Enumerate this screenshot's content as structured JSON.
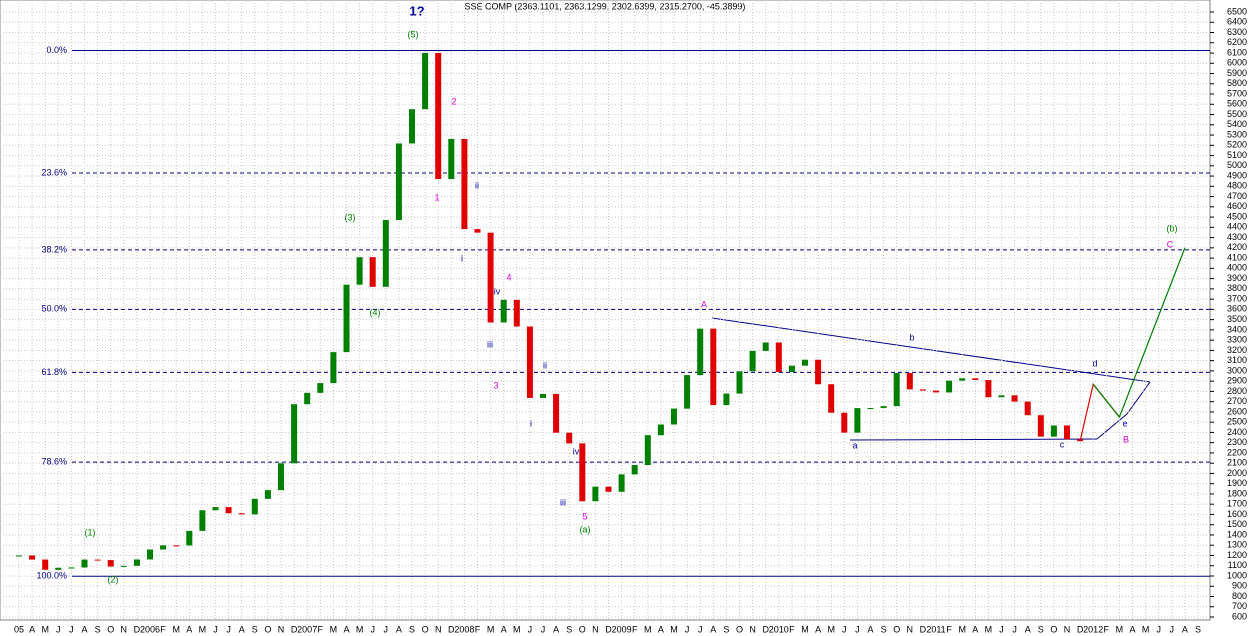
{
  "chart_data": {
    "type": "candle-line",
    "title": "SSE COMP (2363.1101, 2363.1299, 2302.6399, 2315.2700, -45.3899)",
    "categories": [
      "05",
      "A",
      "M",
      "J",
      "J",
      "A",
      "S",
      "O",
      "N",
      "D",
      "2006",
      "F",
      "M",
      "A",
      "M",
      "J",
      "J",
      "A",
      "S",
      "O",
      "N",
      "D",
      "2007",
      "F",
      "M",
      "A",
      "M",
      "J",
      "J",
      "A",
      "S",
      "O",
      "N",
      "D",
      "2008",
      "F",
      "M",
      "A",
      "M",
      "J",
      "J",
      "A",
      "S",
      "O",
      "N",
      "D",
      "2009",
      "F",
      "M",
      "A",
      "M",
      "J",
      "J",
      "A",
      "S",
      "O",
      "N",
      "D",
      "2010",
      "F",
      "M",
      "A",
      "M",
      "J",
      "J",
      "A",
      "S",
      "O",
      "N",
      "D",
      "2011",
      "F",
      "M",
      "A",
      "M",
      "J",
      "J",
      "A",
      "S",
      "O",
      "N",
      "D",
      "2012",
      "F",
      "M",
      "A",
      "M",
      "J",
      "J",
      "A",
      "S"
    ],
    "values": [
      1200,
      1160,
      1060,
      1080,
      1083,
      1160,
      1155,
      1092,
      1099,
      1161,
      1258,
      1299,
      1298,
      1440,
      1641,
      1672,
      1612,
      1601,
      1752,
      1837,
      2099,
      2675,
      2786,
      2881,
      3183,
      3841,
      4109,
      3820,
      4471,
      5218,
      5552,
      6100,
      4871,
      5262,
      4383,
      4348,
      3472,
      3693,
      3433,
      2736,
      2775,
      2397,
      2293,
      1729,
      1871,
      1821,
      1991,
      2082,
      2373,
      2477,
      2632,
      2959,
      3412,
      2667,
      2779,
      2996,
      3195,
      3277,
      2989,
      3051,
      3109,
      2870,
      2592,
      2398,
      2637,
      2638,
      2656,
      2979,
      2820,
      2808,
      2790,
      2905,
      2928,
      2911,
      2743,
      2762,
      2701,
      2568,
      2359,
      2468,
      2333,
      2315,
      null,
      null,
      null,
      null,
      null,
      null,
      null,
      null,
      null
    ],
    "up_color": "#008000",
    "down_color": "#e00000",
    "series": [
      {
        "color": "#e00000",
        "values": [
          null,
          null,
          null,
          null,
          null,
          null,
          null,
          null,
          null,
          null,
          null,
          null,
          null,
          null,
          null,
          null,
          null,
          null,
          null,
          null,
          null,
          null,
          null,
          null,
          null,
          null,
          null,
          null,
          null,
          null,
          null,
          null,
          null,
          null,
          null,
          null,
          null,
          null,
          null,
          null,
          null,
          null,
          null,
          null,
          null,
          null,
          null,
          null,
          null,
          null,
          null,
          null,
          null,
          null,
          null,
          null,
          null,
          null,
          null,
          null,
          null,
          null,
          null,
          null,
          null,
          null,
          null,
          null,
          null,
          null,
          null,
          null,
          null,
          null,
          null,
          null,
          null,
          null,
          null,
          null,
          null,
          2315,
          2870,
          null,
          2550,
          null,
          null,
          null,
          null,
          null,
          null
        ]
      },
      {
        "color": "#008000",
        "values": [
          null,
          null,
          null,
          null,
          null,
          null,
          null,
          null,
          null,
          null,
          null,
          null,
          null,
          null,
          null,
          null,
          null,
          null,
          null,
          null,
          null,
          null,
          null,
          null,
          null,
          null,
          null,
          null,
          null,
          null,
          null,
          null,
          null,
          null,
          null,
          null,
          null,
          null,
          null,
          null,
          null,
          null,
          null,
          null,
          null,
          null,
          null,
          null,
          null,
          null,
          null,
          null,
          null,
          null,
          null,
          null,
          null,
          null,
          null,
          null,
          null,
          null,
          null,
          null,
          null,
          null,
          null,
          null,
          null,
          null,
          null,
          null,
          null,
          null,
          null,
          null,
          null,
          null,
          null,
          null,
          null,
          null,
          2870,
          null,
          2550,
          null,
          null,
          null,
          null,
          4200,
          null
        ]
      }
    ],
    "fib_levels": [
      {
        "value": 6124,
        "label": "0.0%"
      },
      {
        "value": 4930,
        "label": "23.6%"
      },
      {
        "value": 4180,
        "label": "38.2%"
      },
      {
        "value": 3600,
        "label": "50.0%"
      },
      {
        "value": 2985,
        "label": "61.8%"
      },
      {
        "value": 2110,
        "label": "78.6%"
      },
      {
        "value": 998,
        "label": "100.0%"
      }
    ],
    "fib_color": "#00008b",
    "ylim": [
      600,
      6500
    ],
    "yticks": [
      600,
      700,
      800,
      900,
      1000,
      1100,
      1200,
      1300,
      1400,
      1500,
      1600,
      1700,
      1800,
      1900,
      2000,
      2100,
      2200,
      2300,
      2400,
      2500,
      2600,
      2700,
      2800,
      2900,
      3000,
      3100,
      3200,
      3300,
      3400,
      3500,
      3600,
      3700,
      3800,
      3900,
      4000,
      4100,
      4200,
      4300,
      4400,
      4500,
      4600,
      4700,
      4800,
      4900,
      5000,
      5100,
      5200,
      5300,
      5400,
      5500,
      5600,
      5700,
      5800,
      5900,
      6000,
      6100,
      6200,
      6300,
      6400,
      6500
    ],
    "grid": true,
    "annotations": [
      {
        "text": "1?",
        "color": "#0000a0"
      },
      {
        "text": "(5)",
        "color": "#008000"
      },
      {
        "text": "2",
        "color": "#e000e0"
      },
      {
        "text": "1",
        "color": "#e000e0"
      },
      {
        "text": "(3)",
        "color": "#008000"
      },
      {
        "text": "i",
        "color": "#0000a0"
      },
      {
        "text": "ii",
        "color": "#0000a0"
      },
      {
        "text": "iv",
        "color": "#0000a0"
      },
      {
        "text": "4",
        "color": "#e000e0"
      },
      {
        "text": "iii",
        "color": "#0000a0"
      },
      {
        "text": "(4)",
        "color": "#008000"
      },
      {
        "text": "3",
        "color": "#e000e0"
      },
      {
        "text": "ii",
        "color": "#0000a0"
      },
      {
        "text": "i",
        "color": "#0000a0"
      },
      {
        "text": "iv",
        "color": "#0000a0"
      },
      {
        "text": "iii",
        "color": "#0000a0"
      },
      {
        "text": "5",
        "color": "#e000e0"
      },
      {
        "text": "(a)",
        "color": "#008000"
      },
      {
        "text": "(1)",
        "color": "#008000"
      },
      {
        "text": "(2)",
        "color": "#008000"
      },
      {
        "text": "A",
        "color": "#e000e0"
      },
      {
        "text": "b",
        "color": "#0000a0"
      },
      {
        "text": "a",
        "color": "#0000a0"
      },
      {
        "text": "c",
        "color": "#0000a0"
      },
      {
        "text": "d",
        "color": "#0000a0"
      },
      {
        "text": "e",
        "color": "#0000a0"
      },
      {
        "text": "B",
        "color": "#e000e0"
      },
      {
        "text": "(b)",
        "color": "#008000"
      },
      {
        "text": "C",
        "color": "#e000e0"
      }
    ]
  }
}
